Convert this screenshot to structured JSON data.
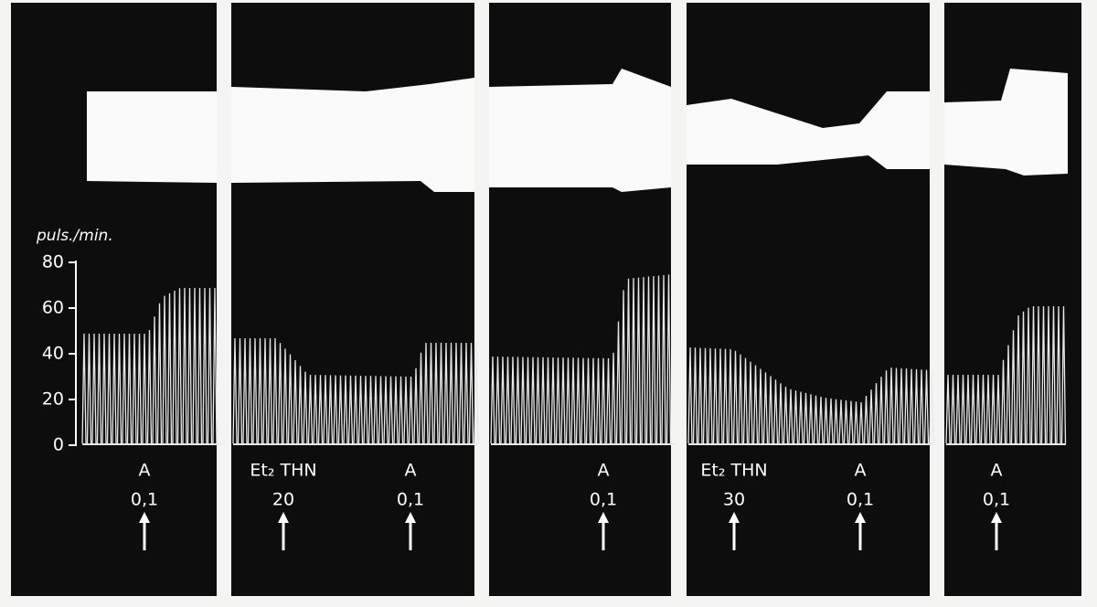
{
  "axis": {
    "label": "puls./min.",
    "ticks": [
      0,
      20,
      40,
      60,
      80
    ]
  },
  "panels": [
    {
      "markers": [
        {
          "drug": "A",
          "dose": "0,1"
        }
      ]
    },
    {
      "markers": [
        {
          "drug": "Et₂ THN",
          "dose": "20"
        },
        {
          "drug": "A",
          "dose": "0,1"
        }
      ]
    },
    {
      "markers": [
        {
          "drug": "A",
          "dose": "0,1"
        }
      ]
    },
    {
      "markers": [
        {
          "drug": "Et₂ THN",
          "dose": "30"
        },
        {
          "drug": "A",
          "dose": "0,1"
        }
      ]
    },
    {
      "markers": [
        {
          "drug": "A",
          "dose": "0,1"
        }
      ]
    }
  ]
}
